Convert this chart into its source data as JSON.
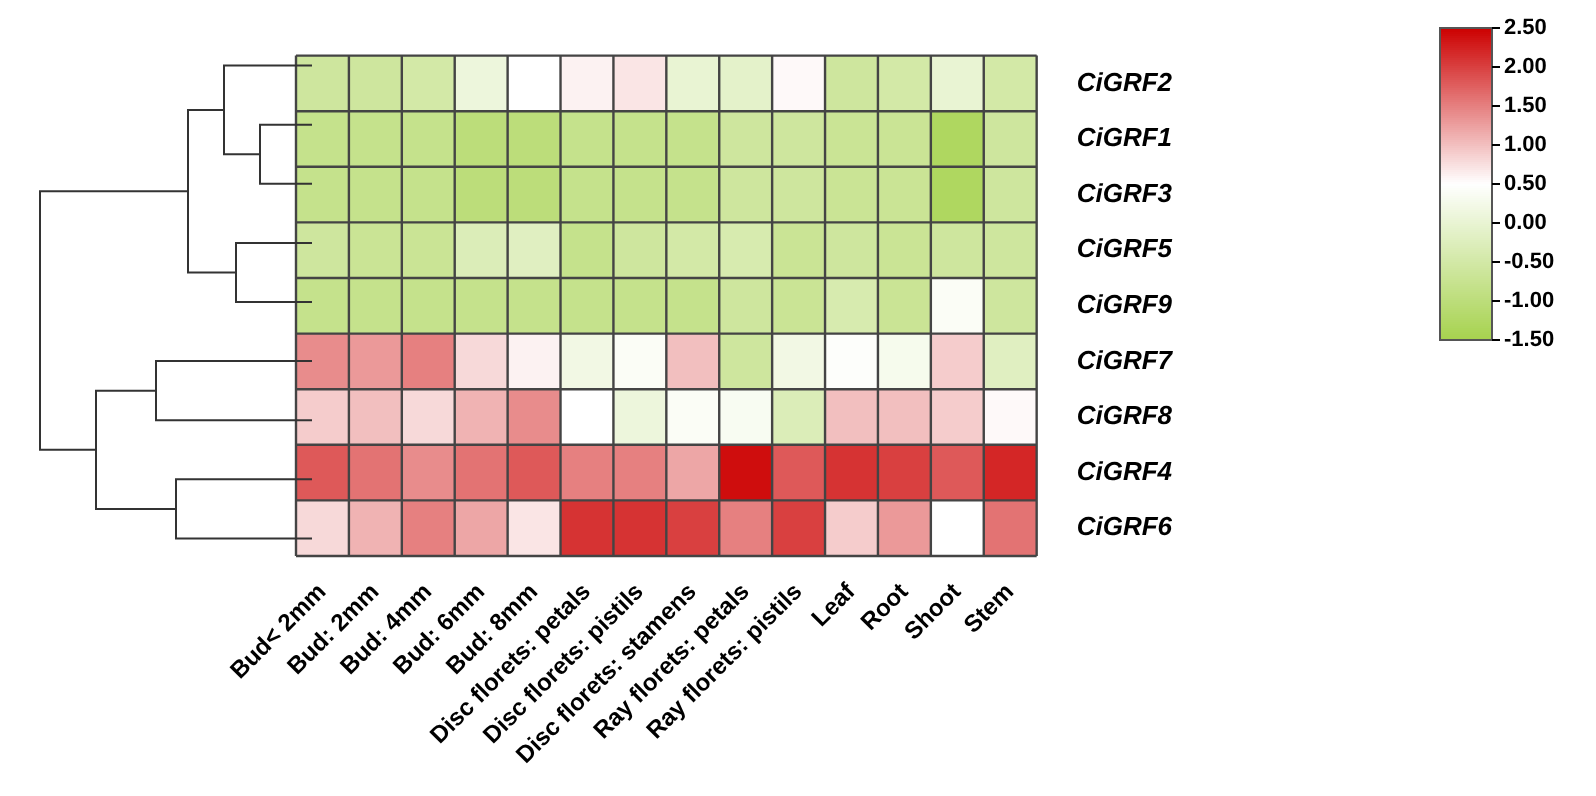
{
  "chart_data": {
    "type": "heatmap",
    "categories": [
      "Bud< 2mm",
      "Bud: 2mm",
      "Bud: 4mm",
      "Bud: 6mm",
      "Bud: 8mm",
      "Disc florets: petals",
      "Disc florets: pistils",
      "Disc florets: stamens",
      "Ray florets: petals",
      "Ray florets: pistils",
      "Leaf",
      "Root",
      "Shoot",
      "Stem"
    ],
    "y_categories": [
      "CiGRF2",
      "CiGRF1",
      "CiGRF3",
      "CiGRF5",
      "CiGRF9",
      "CiGRF7",
      "CiGRF8",
      "CiGRF4",
      "CiGRF6"
    ],
    "cells": [
      [
        -0.6,
        -0.6,
        -0.5,
        0.1,
        0.5,
        0.6,
        0.7,
        0.0,
        -0.1,
        0.55,
        -0.6,
        -0.5,
        0.0,
        -0.5
      ],
      [
        -0.8,
        -0.8,
        -0.8,
        -1.0,
        -1.0,
        -0.8,
        -0.8,
        -0.8,
        -0.6,
        -0.6,
        -0.7,
        -0.7,
        -1.3,
        -0.6
      ],
      [
        -0.8,
        -0.8,
        -0.8,
        -1.0,
        -1.0,
        -0.8,
        -0.8,
        -0.8,
        -0.6,
        -0.6,
        -0.7,
        -0.7,
        -1.3,
        -0.6
      ],
      [
        -0.6,
        -0.7,
        -0.7,
        -0.3,
        -0.2,
        -0.8,
        -0.6,
        -0.5,
        -0.4,
        -0.7,
        -0.6,
        -0.7,
        -0.6,
        -0.6
      ],
      [
        -0.8,
        -0.8,
        -0.8,
        -0.8,
        -0.8,
        -0.8,
        -0.8,
        -0.8,
        -0.6,
        -0.7,
        -0.4,
        -0.7,
        0.4,
        -0.6
      ],
      [
        1.4,
        1.3,
        1.5,
        0.8,
        0.6,
        0.2,
        0.4,
        1.0,
        -0.6,
        0.2,
        0.45,
        0.3,
        0.9,
        -0.2
      ],
      [
        0.9,
        1.0,
        0.8,
        1.1,
        1.4,
        0.5,
        0.1,
        0.4,
        0.35,
        -0.3,
        1.0,
        1.0,
        0.9,
        0.55
      ],
      [
        1.8,
        1.6,
        1.4,
        1.6,
        1.8,
        1.5,
        1.5,
        1.2,
        2.4,
        1.8,
        2.1,
        2.0,
        1.8,
        2.2
      ],
      [
        0.8,
        1.1,
        1.5,
        1.2,
        0.7,
        2.1,
        2.1,
        2.0,
        1.5,
        2.0,
        0.9,
        1.3,
        0.5,
        1.6
      ]
    ],
    "colors": [
      "#a6d24e",
      "#ffffff",
      "#cc0000"
    ],
    "clim": [
      -1.5,
      2.5
    ],
    "cticks": [
      {
        "value": 2.5,
        "label": "2.50"
      },
      {
        "value": 2,
        "label": "2.00"
      },
      {
        "value": 1.5,
        "label": "1.50"
      },
      {
        "value": 1,
        "label": "1.00"
      },
      {
        "value": 0.5,
        "label": "0.50"
      },
      {
        "value": 0,
        "label": "0.00"
      },
      {
        "value": -0.5,
        "label": "-0.50"
      },
      {
        "value": -1,
        "label": "-1.00"
      },
      {
        "value": -1.5,
        "label": "-1.50"
      }
    ]
  }
}
